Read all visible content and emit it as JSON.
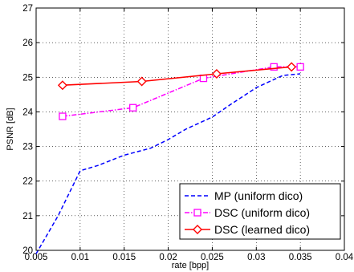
{
  "chart_data": {
    "type": "line",
    "xlabel": "rate [bpp]",
    "ylabel": "PSNR [dB]",
    "xlim": [
      0.005,
      0.04
    ],
    "ylim": [
      20,
      27
    ],
    "xticks": [
      0.005,
      0.01,
      0.015,
      0.02,
      0.025,
      0.03,
      0.035,
      0.04
    ],
    "xtick_labels": [
      "0.005",
      "0.01",
      "0.015",
      "0.02",
      "0.025",
      "0.03",
      "0.035",
      "0.04"
    ],
    "yticks": [
      20,
      21,
      22,
      23,
      24,
      25,
      26,
      27
    ],
    "ytick_labels": [
      "20",
      "21",
      "22",
      "23",
      "24",
      "25",
      "26",
      "27"
    ],
    "grid": true,
    "legend_position": "bottom-right",
    "series": [
      {
        "name": "MP (uniform dico)",
        "color": "#0000ff",
        "style": "dashed",
        "marker": "none",
        "x": [
          0.005,
          0.0075,
          0.01,
          0.012,
          0.015,
          0.018,
          0.02,
          0.022,
          0.025,
          0.027,
          0.03,
          0.033,
          0.035
        ],
        "y": [
          19.9,
          21.0,
          22.3,
          22.45,
          22.75,
          22.95,
          23.2,
          23.5,
          23.85,
          24.2,
          24.7,
          25.05,
          25.1
        ]
      },
      {
        "name": "DSC (uniform dico)",
        "color": "#ff00ff",
        "style": "dash-dot",
        "marker": "square",
        "x": [
          0.008,
          0.016,
          0.024,
          0.032,
          0.035
        ],
        "y": [
          23.87,
          24.12,
          24.97,
          25.3,
          25.3
        ]
      },
      {
        "name": "DSC (learned dico)",
        "color": "#ff0000",
        "style": "solid",
        "marker": "diamond",
        "x": [
          0.008,
          0.017,
          0.0255,
          0.034
        ],
        "y": [
          24.77,
          24.88,
          25.1,
          25.3
        ]
      }
    ]
  }
}
